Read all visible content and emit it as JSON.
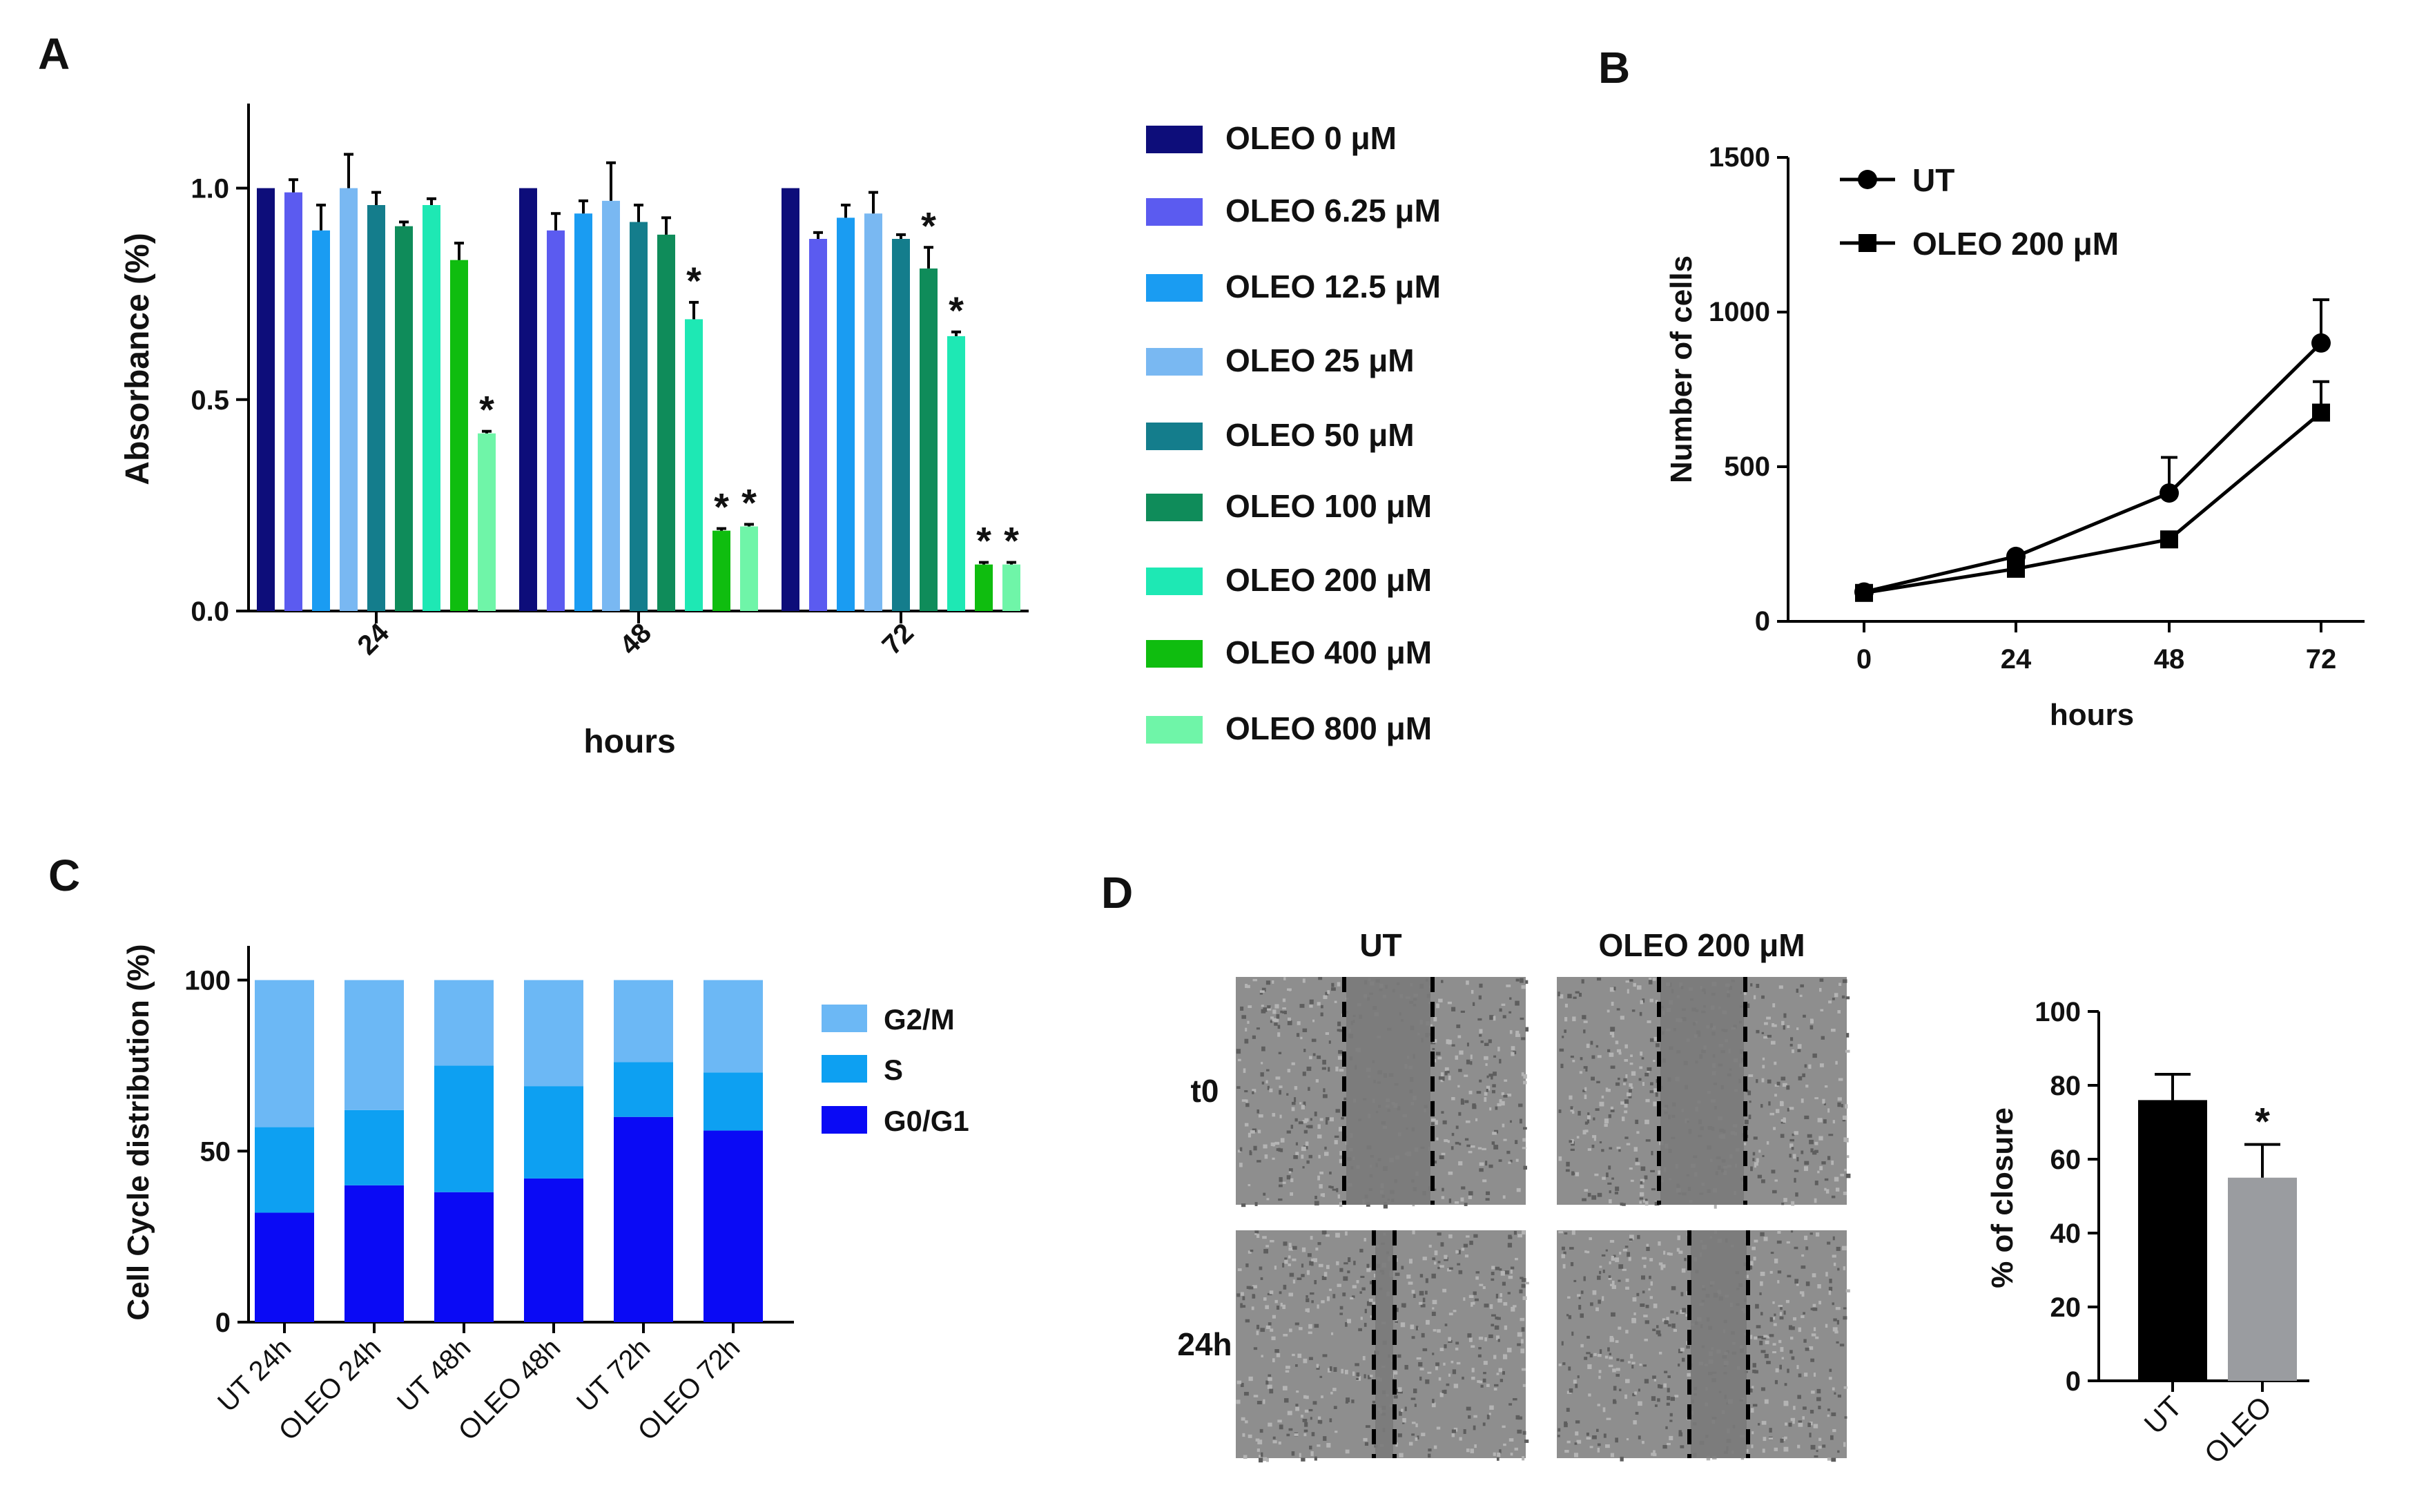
{
  "panels": {
    "A": {
      "label": "A"
    },
    "B": {
      "label": "B"
    },
    "C": {
      "label": "C"
    },
    "D": {
      "label": "D"
    }
  },
  "chart_data": [
    {
      "id": "A",
      "type": "bar",
      "title": "",
      "xlabel": "hours",
      "ylabel": "Absorbance (%)",
      "ylim": [
        0,
        1.2
      ],
      "yticks": [
        "0.0",
        "0.5",
        "1.0"
      ],
      "categories": [
        "24",
        "48",
        "72"
      ],
      "series": [
        {
          "name": "OLEO 0 μM",
          "color": "#0d0d7a",
          "values": [
            1.0,
            1.0,
            1.0
          ],
          "errors": [
            0,
            0,
            0
          ],
          "sig": [
            "",
            "",
            ""
          ]
        },
        {
          "name": "OLEO 6.25 μM",
          "color": "#5b5bf0",
          "values": [
            0.99,
            0.9,
            0.88
          ],
          "errors": [
            0.03,
            0.04,
            0.015
          ],
          "sig": [
            "",
            "",
            ""
          ]
        },
        {
          "name": "OLEO 12.5 μM",
          "color": "#1a9cf2",
          "values": [
            0.9,
            0.94,
            0.93
          ],
          "errors": [
            0.06,
            0.03,
            0.03
          ],
          "sig": [
            "",
            "",
            ""
          ]
        },
        {
          "name": "OLEO 25 μM",
          "color": "#79b8f2",
          "values": [
            1.0,
            0.97,
            0.94
          ],
          "errors": [
            0.08,
            0.09,
            0.05
          ],
          "sig": [
            "",
            "",
            ""
          ]
        },
        {
          "name": "OLEO 50 μM",
          "color": "#147d8c",
          "values": [
            0.96,
            0.92,
            0.88
          ],
          "errors": [
            0.03,
            0.04,
            0.01
          ],
          "sig": [
            "",
            "",
            ""
          ]
        },
        {
          "name": "OLEO 100 μM",
          "color": "#0f8c5a",
          "values": [
            0.91,
            0.89,
            0.81
          ],
          "errors": [
            0.01,
            0.04,
            0.05
          ],
          "sig": [
            "",
            "",
            "*"
          ]
        },
        {
          "name": "OLEO 200 μM",
          "color": "#1ee8b4",
          "values": [
            0.96,
            0.69,
            0.65
          ],
          "errors": [
            0.015,
            0.04,
            0.01
          ],
          "sig": [
            "",
            "*",
            "*"
          ]
        },
        {
          "name": "OLEO 400 μM",
          "color": "#0fbd0f",
          "values": [
            0.83,
            0.19,
            0.11
          ],
          "errors": [
            0.04,
            0.005,
            0.005
          ],
          "sig": [
            "",
            "*",
            "*"
          ]
        },
        {
          "name": "OLEO 800 μM",
          "color": "#6ff5a8",
          "values": [
            0.42,
            0.2,
            0.11
          ],
          "errors": [
            0.005,
            0.005,
            0.005
          ],
          "sig": [
            "*",
            "*",
            "*"
          ]
        }
      ]
    },
    {
      "id": "B",
      "type": "line",
      "title": "",
      "xlabel": "hours",
      "ylabel": "Number of cells",
      "x": [
        0,
        24,
        48,
        72
      ],
      "xticks": [
        "0",
        "24",
        "48",
        "72"
      ],
      "ylim": [
        0,
        1500
      ],
      "yticks": [
        "0",
        "500",
        "1000",
        "1500"
      ],
      "series": [
        {
          "name": "UT",
          "marker": "circle",
          "values": [
            95,
            210,
            415,
            900
          ],
          "errors": [
            0,
            0,
            115,
            140
          ]
        },
        {
          "name": "OLEO  200 μM",
          "marker": "square",
          "values": [
            92,
            170,
            265,
            675
          ],
          "errors": [
            0,
            0,
            0,
            100
          ]
        }
      ]
    },
    {
      "id": "C",
      "type": "bar",
      "stacked": true,
      "title": "",
      "xlabel": "",
      "ylabel": "Cell Cycle distribution (%)",
      "ylim": [
        0,
        110
      ],
      "yticks": [
        "0",
        "50",
        "100"
      ],
      "categories": [
        "UT 24h",
        "OLEO 24h",
        "UT 48h",
        "OLEO 48h",
        "UT  72h",
        "OLEO 72h"
      ],
      "series": [
        {
          "name": "G0/G1",
          "color": "#0a0af5",
          "values": [
            32,
            40,
            38,
            42,
            60,
            56
          ]
        },
        {
          "name": "S",
          "color": "#0da0f2",
          "values": [
            25,
            22,
            37,
            27,
            16,
            17
          ]
        },
        {
          "name": "G2/M",
          "color": "#6cb8f5",
          "values": [
            43,
            38,
            25,
            31,
            24,
            27
          ]
        }
      ],
      "legend_order": [
        "G2/M",
        "S",
        "G0/G1"
      ]
    },
    {
      "id": "D",
      "type": "bar",
      "title": "",
      "xlabel": "",
      "ylabel": "% of closure",
      "ylim": [
        0,
        100
      ],
      "yticks": [
        "0",
        "20",
        "40",
        "60",
        "80",
        "100"
      ],
      "categories": [
        "UT",
        "OLEO"
      ],
      "values": [
        76,
        55
      ],
      "errors": [
        7,
        9
      ],
      "colors": [
        "#000000",
        "#9a9ca0"
      ],
      "sig": [
        "",
        "*"
      ]
    }
  ],
  "micrographs": {
    "columns": [
      "UT",
      "OLEO 200 μM"
    ],
    "rows": [
      "t0",
      "24h"
    ]
  }
}
